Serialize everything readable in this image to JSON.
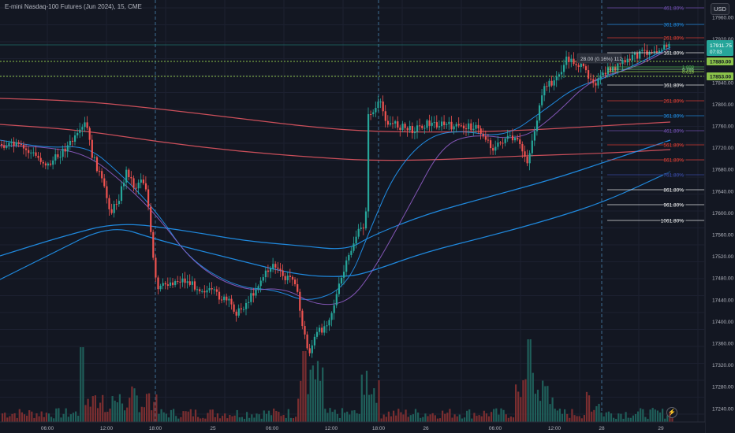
{
  "header": {
    "title": "E-mini Nasdaq-100 Futures (Jun 2024), 15, CME",
    "currency_button": "USD",
    "flash_icon": "lightning-icon"
  },
  "price_scale": {
    "ticks": [
      "17960.00",
      "17920.00",
      "17880.00",
      "17840.00",
      "17800.00",
      "17760.00",
      "17720.00",
      "17680.00",
      "17640.00",
      "17600.00",
      "17560.00",
      "17520.00",
      "17480.00",
      "17440.00",
      "17400.00",
      "17360.00",
      "17320.00",
      "17280.00",
      "17240.00"
    ],
    "last_price_label": "17911.75",
    "countdown_label": "07:03",
    "level_labels": [
      "17880.00",
      "17853.00"
    ],
    "accent_last": "#26a69a",
    "accent_level": "#8bc34a"
  },
  "time_scale": {
    "ticks": [
      {
        "label": "06:00",
        "x": 60
      },
      {
        "label": "12:00",
        "x": 135
      },
      {
        "label": "18:00",
        "x": 197
      },
      {
        "label": "25",
        "x": 270
      },
      {
        "label": "06:00",
        "x": 345
      },
      {
        "label": "12:00",
        "x": 420
      },
      {
        "label": "18:00",
        "x": 480
      },
      {
        "label": "26",
        "x": 540
      },
      {
        "label": "06:00",
        "x": 628
      },
      {
        "label": "12:00",
        "x": 703
      },
      {
        "label": "28",
        "x": 763
      },
      {
        "label": "29",
        "x": 838
      }
    ]
  },
  "fib_levels": [
    {
      "label": "461.80%",
      "color": "#7e57c2"
    },
    {
      "label": "361.80%",
      "color": "#2196f3"
    },
    {
      "label": "261.80%",
      "color": "#f44336"
    },
    {
      "label": "161.80%",
      "color": "#ffffff"
    },
    {
      "label": "1.000",
      "color": "#4caf50"
    },
    {
      "label": "0.786",
      "color": "#81c784"
    },
    {
      "label": "0.618",
      "color": "#8bc34a"
    },
    {
      "label": "161.80%",
      "color": "#ffffff"
    },
    {
      "label": "261.80%",
      "color": "#f44336"
    },
    {
      "label": "361.80%",
      "color": "#2196f3"
    },
    {
      "label": "461.80%",
      "color": "#7e57c2"
    },
    {
      "label": "561.80%",
      "color": "#f44336"
    },
    {
      "label": "661.80%",
      "color": "#f44336"
    },
    {
      "label": "761.80%",
      "color": "#3f51b5"
    },
    {
      "label": "861.80%",
      "color": "#ffffff"
    },
    {
      "label": "961.80%",
      "color": "#ffffff"
    },
    {
      "label": "1061.80%",
      "color": "#ffffff"
    }
  ],
  "measure_tooltip": "28.00 (0.16%) 112",
  "colors": {
    "up": "#26a69a",
    "down": "#ef5350",
    "background": "#131722",
    "ma_red": "#e05561",
    "ma_blue": "#2196f3",
    "ma_purple": "#8e5cc4"
  }
}
